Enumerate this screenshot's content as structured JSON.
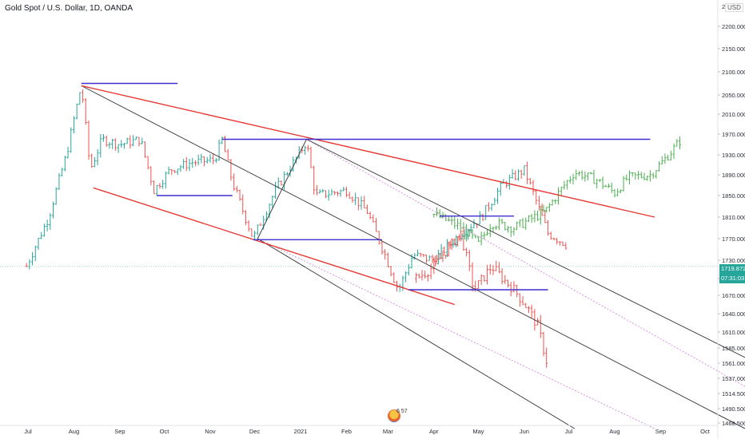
{
  "header": {
    "title": "Gold Spot / U.S. Dollar, 1D, OANDA",
    "currency": "USD"
  },
  "price_axis_top_label": "22",
  "price_badge": {
    "price": "1719.872",
    "countdown": "07:31:03"
  },
  "logo_text": "6 57",
  "colors": {
    "up": "#26a69a",
    "down": "#ef5350",
    "projection": "#4caf50",
    "red_line": "#e53935",
    "blue_line": "#3f2fd0",
    "black_line": "#333333",
    "pink_line": "#d07ad8",
    "badge": "#26a69a"
  },
  "chart_data": {
    "type": "line",
    "title": "Gold Spot / U.S. Dollar, 1D, OANDA",
    "xlabel": "",
    "ylabel": "",
    "ylim": [
      1468.5,
      2222
    ],
    "y_ticks": [
      "2200.000",
      "2150.000",
      "2100.000",
      "2050.000",
      "2010.000",
      "1970.000",
      "1930.000",
      "1890.000",
      "1850.000",
      "1810.000",
      "1770.000",
      "1730.000",
      "1700.000",
      "1670.000",
      "1640.000",
      "1610.000",
      "1585.000",
      "1561.000",
      "1537.000",
      "1514.500",
      "1490.500",
      "1468.500"
    ],
    "x_ticks": [
      "Jul",
      "Aug",
      "Sep",
      "Oct",
      "Nov",
      "Dec",
      "2021",
      "Feb",
      "Mar",
      "Apr",
      "May",
      "Jun",
      "Jul",
      "Aug",
      "Sep",
      "Oct"
    ],
    "grid": false,
    "series": [
      {
        "kind": "historical",
        "points": [
          [
            "2020-06-30",
            1720
          ],
          [
            "2020-07-15",
            1810
          ],
          [
            "2020-07-27",
            1930
          ],
          [
            "2020-08-06",
            2070
          ],
          [
            "2020-08-12",
            1900
          ],
          [
            "2020-08-20",
            1960
          ],
          [
            "2020-09-01",
            1950
          ],
          [
            "2020-09-15",
            1960
          ],
          [
            "2020-09-24",
            1860
          ],
          [
            "2020-10-05",
            1900
          ],
          [
            "2020-10-20",
            1915
          ],
          [
            "2020-11-04",
            1920
          ],
          [
            "2020-11-09",
            1960
          ],
          [
            "2020-11-16",
            1875
          ],
          [
            "2020-11-30",
            1770
          ],
          [
            "2020-12-15",
            1860
          ],
          [
            "2021-01-05",
            1955
          ],
          [
            "2021-01-11",
            1850
          ],
          [
            "2021-02-01",
            1860
          ],
          [
            "2021-02-15",
            1820
          ],
          [
            "2021-03-08",
            1680
          ],
          [
            "2021-03-18",
            1740
          ],
          [
            "2021-04-01",
            1730
          ],
          [
            "2021-04-19",
            1780
          ],
          [
            "2021-05-03",
            1810
          ],
          [
            "2021-05-17",
            1870
          ],
          [
            "2021-06-01",
            1900
          ],
          [
            "2021-06-17",
            1780
          ],
          [
            "2021-06-29",
            1760
          ]
        ]
      },
      {
        "kind": "projection",
        "points": [
          [
            "2021-04-01",
            1815
          ],
          [
            "2021-04-20",
            1790
          ],
          [
            "2021-05-01",
            1760
          ],
          [
            "2021-05-10",
            1800
          ],
          [
            "2021-05-25",
            1790
          ],
          [
            "2021-06-15",
            1820
          ],
          [
            "2021-06-28",
            1870
          ],
          [
            "2021-07-05",
            1895
          ],
          [
            "2021-07-20",
            1880
          ],
          [
            "2021-08-01",
            1855
          ],
          [
            "2021-08-10",
            1885
          ],
          [
            "2021-08-25",
            1890
          ],
          [
            "2021-09-05",
            1925
          ],
          [
            "2021-09-15",
            1960
          ]
        ]
      },
      {
        "kind": "decline",
        "points": [
          [
            "2021-03-20",
            1700
          ],
          [
            "2021-04-01",
            1720
          ],
          [
            "2021-04-19",
            1780
          ],
          [
            "2021-04-28",
            1680
          ],
          [
            "2021-05-10",
            1720
          ],
          [
            "2021-05-25",
            1680
          ],
          [
            "2021-06-03",
            1650
          ],
          [
            "2021-06-10",
            1620
          ],
          [
            "2021-06-16",
            1565
          ]
        ]
      }
    ],
    "drawings": {
      "blue_levels": [
        {
          "start": [
            "2020-08-06",
            2075
          ],
          "end": [
            "2020-10-10",
            2075
          ]
        },
        {
          "start": [
            "2020-11-09",
            1960
          ],
          "end": [
            "2021-08-25",
            1960
          ]
        },
        {
          "start": [
            "2020-09-26",
            1850
          ],
          "end": [
            "2020-11-16",
            1850
          ]
        },
        {
          "start": [
            "2020-11-30",
            1768
          ],
          "end": [
            "2021-02-25",
            1768
          ]
        },
        {
          "start": [
            "2021-04-05",
            1812
          ],
          "end": [
            "2021-05-25",
            1812
          ]
        },
        {
          "start": [
            "2021-03-15",
            1680
          ],
          "end": [
            "2021-06-17",
            1680
          ]
        }
      ],
      "red_lines": [
        {
          "start": [
            "2020-08-06",
            2070
          ],
          "end": [
            "2021-08-28",
            1810
          ]
        },
        {
          "start": [
            "2020-08-14",
            1865
          ],
          "end": [
            "2021-04-15",
            1655
          ]
        }
      ],
      "black_lines": [
        {
          "start": [
            "2020-08-06",
            2070
          ],
          "end": [
            "2021-10-28",
            1460
          ]
        },
        {
          "start": [
            "2020-12-03",
            1770
          ],
          "end": [
            "2021-01-05",
            1960
          ]
        },
        {
          "start": [
            "2021-01-05",
            1960
          ],
          "end": [
            "2021-10-28",
            1570
          ]
        },
        {
          "start": [
            "2020-12-03",
            1770
          ],
          "end": [
            "2021-07-05",
            1460
          ]
        }
      ],
      "pink_lines": [
        {
          "start": [
            "2021-01-05",
            1960
          ],
          "end": [
            "2021-10-28",
            1525
          ]
        },
        {
          "start": [
            "2020-12-03",
            1770
          ],
          "end": [
            "2021-08-28",
            1460
          ]
        }
      ]
    }
  }
}
